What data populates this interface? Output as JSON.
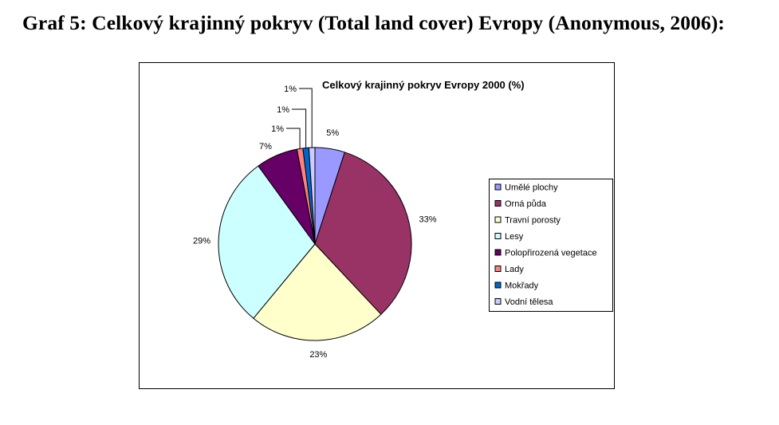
{
  "page": {
    "heading": "Graf 5: Celkový krajinný pokryv (Total land cover) Evropy (Anonymous, 2006):"
  },
  "chart_data": {
    "type": "pie",
    "title": "Celkový krajinný pokryv Evropy 2000 (%)",
    "categories": [
      "Umělé plochy",
      "Orná půda",
      "Travní porosty",
      "Lesy",
      "Polopřirozená vegetace",
      "Lady",
      "Mokřady",
      "Vodní tělesa"
    ],
    "values": [
      5,
      33,
      23,
      29,
      7,
      1,
      1,
      1
    ],
    "labels": [
      "5%",
      "33%",
      "23%",
      "29%",
      "7%",
      "1%",
      "1%",
      "1%"
    ],
    "colors": [
      "#9999ff",
      "#993366",
      "#ffffcc",
      "#ccffff",
      "#660066",
      "#ff8080",
      "#0066cc",
      "#ccccff"
    ],
    "legend_position": "right",
    "start_angle": "12 o'clock, clockwise"
  }
}
